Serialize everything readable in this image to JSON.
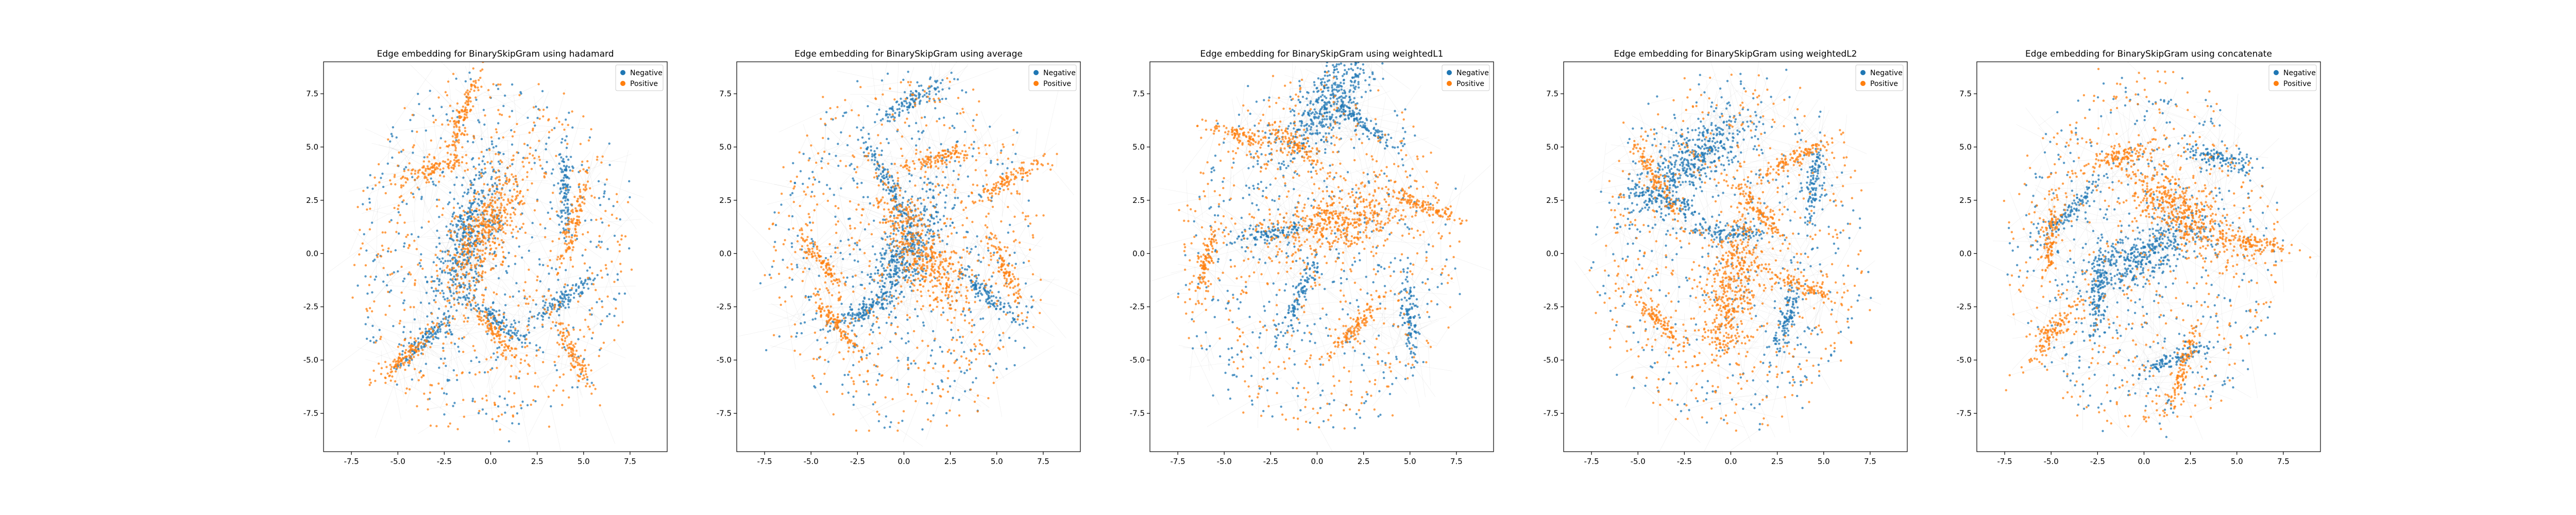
{
  "colors": {
    "negative": "#1f77b4",
    "positive": "#ff7f0e",
    "edge": "#6e6e6e"
  },
  "chart_data": [
    {
      "type": "scatter",
      "title": "Edge embedding for BinarySkipGram using hadamard",
      "xlabel": "",
      "ylabel": "",
      "xlim": [
        -9.0,
        9.5
      ],
      "ylim": [
        -9.3,
        9.0
      ],
      "xticks": [
        -7.5,
        -5.0,
        -2.5,
        0.0,
        2.5,
        5.0,
        7.5
      ],
      "yticks": [
        -7.5,
        -5.0,
        -2.5,
        0.0,
        2.5,
        5.0,
        7.5
      ],
      "grid": false,
      "legend_position": "upper-right",
      "series": [
        {
          "name": "Negative",
          "color": "#1f77b4",
          "clusters": [
            [
              -1.2,
              0.8
            ],
            [
              4.0,
              2.8
            ],
            [
              3.8,
              -2.2
            ],
            [
              -3.5,
              -4.0
            ],
            [
              0.5,
              -3.2
            ]
          ]
        },
        {
          "name": "Positive",
          "color": "#ff7f0e",
          "clusters": [
            [
              -0.3,
              1.0
            ],
            [
              -1.5,
              6.5
            ],
            [
              4.4,
              1.2
            ],
            [
              -4.5,
              -4.8
            ],
            [
              4.5,
              -4.8
            ],
            [
              0.3,
              -3.8
            ],
            [
              -3.0,
              4.0
            ]
          ]
        }
      ]
    },
    {
      "type": "scatter",
      "title": "Edge embedding for BinarySkipGram using average",
      "xlabel": "",
      "ylabel": "",
      "xlim": [
        -9.0,
        9.5
      ],
      "ylim": [
        -9.3,
        9.0
      ],
      "xticks": [
        -7.5,
        -5.0,
        -2.5,
        0.0,
        2.5,
        5.0,
        7.5
      ],
      "yticks": [
        -7.5,
        -5.0,
        -2.5,
        0.0,
        2.5,
        5.0,
        7.5
      ],
      "grid": false,
      "legend_position": "upper-right",
      "series": [
        {
          "name": "Negative",
          "color": "#1f77b4",
          "clusters": [
            [
              0.0,
              0.0
            ],
            [
              0.5,
              7.2
            ],
            [
              -2.3,
              -2.7
            ],
            [
              4.5,
              -2.0
            ],
            [
              -1.0,
              3.5
            ]
          ]
        },
        {
          "name": "Positive",
          "color": "#ff7f0e",
          "clusters": [
            [
              1.0,
              0.0
            ],
            [
              5.8,
              3.5
            ],
            [
              5.5,
              -0.8
            ],
            [
              -4.5,
              -0.3
            ],
            [
              -3.5,
              -3.5
            ],
            [
              2.0,
              4.5
            ]
          ]
        }
      ]
    },
    {
      "type": "scatter",
      "title": "Edge embedding for BinarySkipGram using weightedL1",
      "xlabel": "",
      "ylabel": "",
      "xlim": [
        -9.0,
        9.5
      ],
      "ylim": [
        -9.3,
        9.0
      ],
      "xticks": [
        -7.5,
        -5.0,
        -2.5,
        0.0,
        2.5,
        5.0,
        7.5
      ],
      "yticks": [
        -7.5,
        -5.0,
        -2.5,
        0.0,
        2.5,
        5.0,
        7.5
      ],
      "grid": false,
      "legend_position": "upper-right",
      "series": [
        {
          "name": "Negative",
          "color": "#1f77b4",
          "clusters": [
            [
              0.5,
              7.0
            ],
            [
              2.3,
              6.2
            ],
            [
              -2.3,
              1.0
            ],
            [
              -1.0,
              -2.0
            ],
            [
              5.0,
              -3.2
            ]
          ]
        },
        {
          "name": "Positive",
          "color": "#ff7f0e",
          "clusters": [
            [
              1.0,
              1.5
            ],
            [
              -4.0,
              5.5
            ],
            [
              6.0,
              2.2
            ],
            [
              2.0,
              -3.5
            ],
            [
              -1.0,
              5.0
            ],
            [
              -6.0,
              -0.5
            ]
          ]
        }
      ]
    },
    {
      "type": "scatter",
      "title": "Edge embedding for BinarySkipGram using weightedL2",
      "xlabel": "",
      "ylabel": "",
      "xlim": [
        -9.0,
        9.5
      ],
      "ylim": [
        -9.3,
        9.0
      ],
      "xticks": [
        -7.5,
        -5.0,
        -2.5,
        0.0,
        2.5,
        5.0,
        7.5
      ],
      "yticks": [
        -7.5,
        -5.0,
        -2.5,
        0.0,
        2.5,
        5.0,
        7.5
      ],
      "grid": false,
      "legend_position": "upper-right",
      "series": [
        {
          "name": "Negative",
          "color": "#1f77b4",
          "clusters": [
            [
              -2.0,
              4.5
            ],
            [
              4.5,
              3.3
            ],
            [
              0.0,
              1.0
            ],
            [
              -3.5,
              2.5
            ],
            [
              3.0,
              -3.0
            ]
          ]
        },
        {
          "name": "Positive",
          "color": "#ff7f0e",
          "clusters": [
            [
              0.0,
              -1.8
            ],
            [
              -4.0,
              3.5
            ],
            [
              3.5,
              4.5
            ],
            [
              -4.0,
              -3.0
            ],
            [
              3.8,
              -1.5
            ],
            [
              1.5,
              2.0
            ]
          ]
        }
      ]
    },
    {
      "type": "scatter",
      "title": "Edge embedding for BinarySkipGram using concatenate",
      "xlabel": "",
      "ylabel": "",
      "xlim": [
        -9.0,
        9.5
      ],
      "ylim": [
        -9.3,
        9.0
      ],
      "xticks": [
        -7.5,
        -5.0,
        -2.5,
        0.0,
        2.5,
        5.0,
        7.5
      ],
      "yticks": [
        -7.5,
        -5.0,
        -2.5,
        0.0,
        2.5,
        5.0,
        7.5
      ],
      "grid": false,
      "legend_position": "upper-right",
      "series": [
        {
          "name": "Negative",
          "color": "#1f77b4",
          "clusters": [
            [
              0.0,
              0.0
            ],
            [
              1.5,
              -5.0
            ],
            [
              4.0,
              4.5
            ],
            [
              -2.5,
              -2.0
            ],
            [
              -4.0,
              2.0
            ]
          ]
        },
        {
          "name": "Positive",
          "color": "#ff7f0e",
          "clusters": [
            [
              2.0,
              2.0
            ],
            [
              -5.0,
              0.8
            ],
            [
              2.0,
              -5.5
            ],
            [
              -5.0,
              -3.8
            ],
            [
              6.0,
              0.5
            ],
            [
              -1.5,
              4.5
            ]
          ]
        }
      ]
    }
  ]
}
